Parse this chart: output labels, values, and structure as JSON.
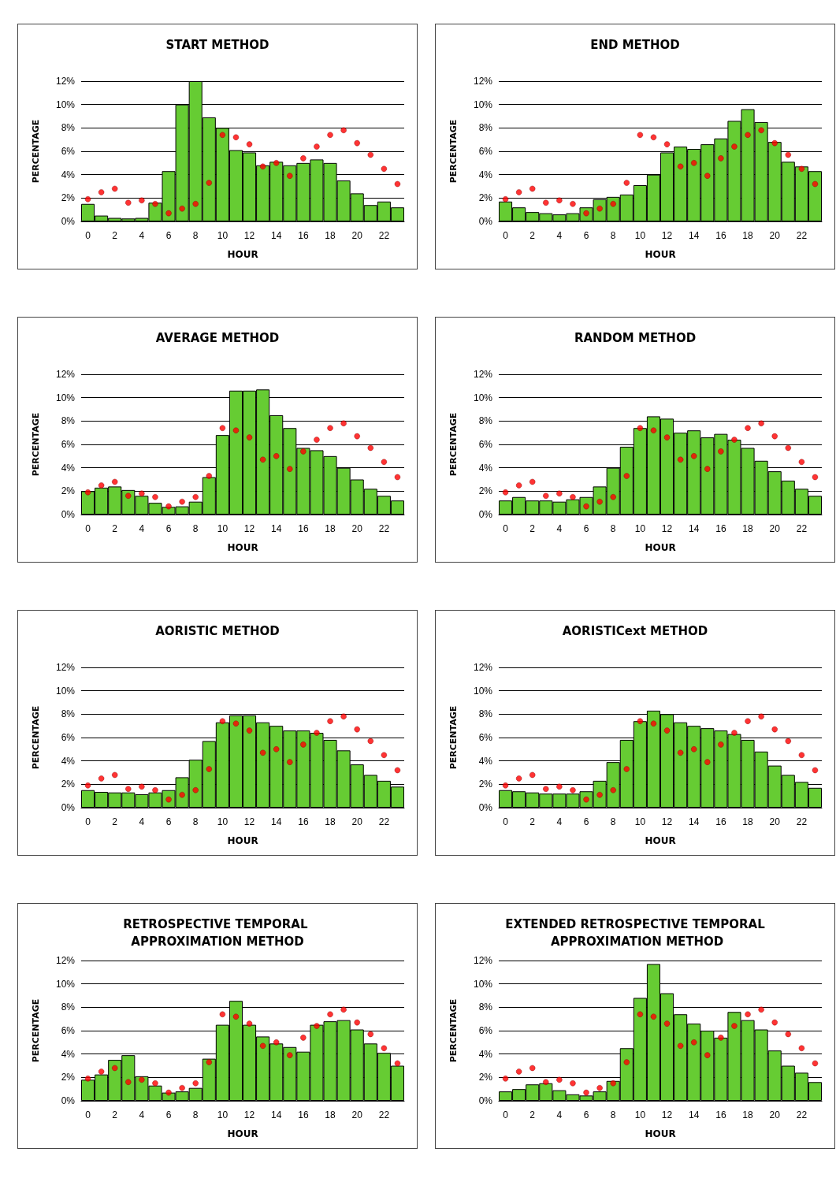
{
  "chart_data": [
    {
      "type": "bar",
      "title": "START METHOD",
      "xlabel": "HOUR",
      "ylabel": "PERCENTAGE",
      "x": [
        0,
        1,
        2,
        3,
        4,
        5,
        6,
        7,
        8,
        9,
        10,
        11,
        12,
        13,
        14,
        15,
        16,
        17,
        18,
        19,
        20,
        21,
        22,
        23
      ],
      "xlim": [
        -0.5,
        23.5
      ],
      "xticks": [
        0,
        2,
        4,
        6,
        8,
        10,
        12,
        14,
        16,
        18,
        20,
        22
      ],
      "ylim": [
        0,
        12
      ],
      "yticks": [
        {
          "value": 0,
          "label": "0%"
        },
        {
          "value": 2,
          "label": "2%"
        },
        {
          "value": 4,
          "label": "4%"
        },
        {
          "value": 6,
          "label": "6%"
        },
        {
          "value": 8,
          "label": "8%"
        },
        {
          "value": 10,
          "label": "10%"
        },
        {
          "value": 12,
          "label": "12%"
        }
      ],
      "grid": "y",
      "marker": "circle",
      "series": [
        {
          "color": "#66cc33",
          "values": [
            1.5,
            0.5,
            0.3,
            0.25,
            0.3,
            1.6,
            4.3,
            10.0,
            12.0,
            8.9,
            8.0,
            6.1,
            5.9,
            4.8,
            5.1,
            4.8,
            5.0,
            5.3,
            5.0,
            3.5,
            2.4,
            1.4,
            1.7,
            1.2
          ]
        },
        {
          "type": "scatter",
          "color": "#ff0000",
          "values": [
            1.9,
            2.5,
            2.8,
            1.6,
            1.8,
            1.5,
            0.7,
            1.1,
            1.5,
            3.3,
            7.4,
            7.2,
            6.6,
            4.7,
            5.0,
            3.9,
            5.4,
            6.4,
            7.4,
            7.8,
            6.7,
            5.7,
            4.5,
            3.2
          ]
        }
      ]
    },
    {
      "type": "bar",
      "title": "END METHOD",
      "xlabel": "HOUR",
      "ylabel": "PERCENTAGE",
      "x": [
        0,
        1,
        2,
        3,
        4,
        5,
        6,
        7,
        8,
        9,
        10,
        11,
        12,
        13,
        14,
        15,
        16,
        17,
        18,
        19,
        20,
        21,
        22,
        23
      ],
      "xlim": [
        -0.5,
        23.5
      ],
      "xticks": [
        0,
        2,
        4,
        6,
        8,
        10,
        12,
        14,
        16,
        18,
        20,
        22
      ],
      "ylim": [
        0,
        12
      ],
      "yticks": [
        {
          "value": 0,
          "label": "0%"
        },
        {
          "value": 2,
          "label": "2%"
        },
        {
          "value": 4,
          "label": "4%"
        },
        {
          "value": 6,
          "label": "6%"
        },
        {
          "value": 8,
          "label": "8%"
        },
        {
          "value": 10,
          "label": "10%"
        },
        {
          "value": 12,
          "label": "12%"
        }
      ],
      "grid": "y",
      "marker": "circle",
      "series": [
        {
          "color": "#66cc33",
          "values": [
            1.7,
            1.2,
            0.8,
            0.7,
            0.6,
            0.7,
            1.2,
            1.9,
            2.1,
            2.3,
            3.1,
            4.0,
            5.9,
            6.4,
            6.2,
            6.6,
            7.1,
            8.6,
            9.6,
            8.5,
            6.8,
            5.1,
            4.7,
            4.3
          ]
        },
        {
          "type": "scatter",
          "color": "#ff0000",
          "values": [
            1.9,
            2.5,
            2.8,
            1.6,
            1.8,
            1.5,
            0.7,
            1.1,
            1.5,
            3.3,
            7.4,
            7.2,
            6.6,
            4.7,
            5.0,
            3.9,
            5.4,
            6.4,
            7.4,
            7.8,
            6.7,
            5.7,
            4.5,
            3.2
          ]
        }
      ]
    },
    {
      "type": "bar",
      "title": "AVERAGE METHOD",
      "xlabel": "HOUR",
      "ylabel": "PERCENTAGE",
      "x": [
        0,
        1,
        2,
        3,
        4,
        5,
        6,
        7,
        8,
        9,
        10,
        11,
        12,
        13,
        14,
        15,
        16,
        17,
        18,
        19,
        20,
        21,
        22,
        23
      ],
      "xlim": [
        -0.5,
        23.5
      ],
      "xticks": [
        0,
        2,
        4,
        6,
        8,
        10,
        12,
        14,
        16,
        18,
        20,
        22
      ],
      "ylim": [
        0,
        12
      ],
      "yticks": [
        {
          "value": 0,
          "label": "0%"
        },
        {
          "value": 2,
          "label": "2%"
        },
        {
          "value": 4,
          "label": "4%"
        },
        {
          "value": 6,
          "label": "6%"
        },
        {
          "value": 8,
          "label": "8%"
        },
        {
          "value": 10,
          "label": "10%"
        },
        {
          "value": 12,
          "label": "12%"
        }
      ],
      "grid": "y",
      "marker": "circle",
      "series": [
        {
          "color": "#66cc33",
          "values": [
            2.0,
            2.3,
            2.4,
            2.1,
            1.6,
            1.0,
            0.65,
            0.7,
            1.1,
            3.2,
            6.8,
            10.6,
            10.6,
            10.7,
            8.5,
            7.4,
            5.7,
            5.5,
            5.0,
            4.0,
            3.0,
            2.2,
            1.6,
            1.2
          ]
        },
        {
          "type": "scatter",
          "color": "#ff0000",
          "values": [
            1.9,
            2.5,
            2.8,
            1.6,
            1.8,
            1.5,
            0.7,
            1.1,
            1.5,
            3.3,
            7.4,
            7.2,
            6.6,
            4.7,
            5.0,
            3.9,
            5.4,
            6.4,
            7.4,
            7.8,
            6.7,
            5.7,
            4.5,
            3.2
          ]
        }
      ]
    },
    {
      "type": "bar",
      "title": "RANDOM METHOD",
      "xlabel": "HOUR",
      "ylabel": "PERCENTAGE",
      "x": [
        0,
        1,
        2,
        3,
        4,
        5,
        6,
        7,
        8,
        9,
        10,
        11,
        12,
        13,
        14,
        15,
        16,
        17,
        18,
        19,
        20,
        21,
        22,
        23
      ],
      "xlim": [
        -0.5,
        23.5
      ],
      "xticks": [
        0,
        2,
        4,
        6,
        8,
        10,
        12,
        14,
        16,
        18,
        20,
        22
      ],
      "ylim": [
        0,
        12
      ],
      "yticks": [
        {
          "value": 0,
          "label": "0%"
        },
        {
          "value": 2,
          "label": "2%"
        },
        {
          "value": 4,
          "label": "4%"
        },
        {
          "value": 6,
          "label": "6%"
        },
        {
          "value": 8,
          "label": "8%"
        },
        {
          "value": 10,
          "label": "10%"
        },
        {
          "value": 12,
          "label": "12%"
        }
      ],
      "grid": "y",
      "marker": "circle",
      "series": [
        {
          "color": "#66cc33",
          "values": [
            1.2,
            1.5,
            1.2,
            1.2,
            1.1,
            1.3,
            1.5,
            2.4,
            4.0,
            5.8,
            7.4,
            8.4,
            8.2,
            7.0,
            7.2,
            6.6,
            6.9,
            6.4,
            5.7,
            4.6,
            3.7,
            2.9,
            2.2,
            1.6
          ]
        },
        {
          "type": "scatter",
          "color": "#ff0000",
          "values": [
            1.9,
            2.5,
            2.8,
            1.6,
            1.8,
            1.5,
            0.7,
            1.1,
            1.5,
            3.3,
            7.4,
            7.2,
            6.6,
            4.7,
            5.0,
            3.9,
            5.4,
            6.4,
            7.4,
            7.8,
            6.7,
            5.7,
            4.5,
            3.2
          ]
        }
      ]
    },
    {
      "type": "bar",
      "title": "AORISTIC METHOD",
      "xlabel": "HOUR",
      "ylabel": "PERCENTAGE",
      "x": [
        0,
        1,
        2,
        3,
        4,
        5,
        6,
        7,
        8,
        9,
        10,
        11,
        12,
        13,
        14,
        15,
        16,
        17,
        18,
        19,
        20,
        21,
        22,
        23
      ],
      "xlim": [
        -0.5,
        23.5
      ],
      "xticks": [
        0,
        2,
        4,
        6,
        8,
        10,
        12,
        14,
        16,
        18,
        20,
        22
      ],
      "ylim": [
        0,
        12
      ],
      "yticks": [
        {
          "value": 0,
          "label": "0%"
        },
        {
          "value": 2,
          "label": "2%"
        },
        {
          "value": 4,
          "label": "4%"
        },
        {
          "value": 6,
          "label": "6%"
        },
        {
          "value": 8,
          "label": "8%"
        },
        {
          "value": 10,
          "label": "10%"
        },
        {
          "value": 12,
          "label": "12%"
        }
      ],
      "grid": "y",
      "marker": "circle",
      "series": [
        {
          "color": "#66cc33",
          "values": [
            1.5,
            1.35,
            1.3,
            1.3,
            1.15,
            1.3,
            1.5,
            2.6,
            4.1,
            5.7,
            7.3,
            7.9,
            7.9,
            7.3,
            7.0,
            6.6,
            6.6,
            6.4,
            5.8,
            4.9,
            3.7,
            2.8,
            2.3,
            1.8
          ]
        },
        {
          "type": "scatter",
          "color": "#ff0000",
          "values": [
            1.9,
            2.5,
            2.8,
            1.6,
            1.8,
            1.5,
            0.7,
            1.1,
            1.5,
            3.3,
            7.4,
            7.2,
            6.6,
            4.7,
            5.0,
            3.9,
            5.4,
            6.4,
            7.4,
            7.8,
            6.7,
            5.7,
            4.5,
            3.2
          ]
        }
      ]
    },
    {
      "type": "bar",
      "title": "AORISTICext METHOD",
      "xlabel": "HOUR",
      "ylabel": "PERCENTAGE",
      "x": [
        0,
        1,
        2,
        3,
        4,
        5,
        6,
        7,
        8,
        9,
        10,
        11,
        12,
        13,
        14,
        15,
        16,
        17,
        18,
        19,
        20,
        21,
        22,
        23
      ],
      "xlim": [
        -0.5,
        23.5
      ],
      "xticks": [
        0,
        2,
        4,
        6,
        8,
        10,
        12,
        14,
        16,
        18,
        20,
        22
      ],
      "ylim": [
        0,
        12
      ],
      "yticks": [
        {
          "value": 0,
          "label": "0%"
        },
        {
          "value": 2,
          "label": "2%"
        },
        {
          "value": 4,
          "label": "4%"
        },
        {
          "value": 6,
          "label": "6%"
        },
        {
          "value": 8,
          "label": "8%"
        },
        {
          "value": 10,
          "label": "10%"
        },
        {
          "value": 12,
          "label": "12%"
        }
      ],
      "grid": "y",
      "marker": "circle",
      "series": [
        {
          "color": "#66cc33",
          "values": [
            1.5,
            1.4,
            1.3,
            1.2,
            1.2,
            1.2,
            1.4,
            2.3,
            3.9,
            5.8,
            7.4,
            8.3,
            8.0,
            7.3,
            7.0,
            6.8,
            6.6,
            6.3,
            5.8,
            4.8,
            3.6,
            2.8,
            2.2,
            1.7
          ]
        },
        {
          "type": "scatter",
          "color": "#ff0000",
          "values": [
            1.9,
            2.5,
            2.8,
            1.6,
            1.8,
            1.5,
            0.7,
            1.1,
            1.5,
            3.3,
            7.4,
            7.2,
            6.6,
            4.7,
            5.0,
            3.9,
            5.4,
            6.4,
            7.4,
            7.8,
            6.7,
            5.7,
            4.5,
            3.2
          ]
        }
      ]
    },
    {
      "type": "bar",
      "title": "RETROSPECTIVE TEMPORAL APPROXIMATION METHOD",
      "xlabel": "HOUR",
      "ylabel": "PERCENTAGE",
      "x": [
        0,
        1,
        2,
        3,
        4,
        5,
        6,
        7,
        8,
        9,
        10,
        11,
        12,
        13,
        14,
        15,
        16,
        17,
        18,
        19,
        20,
        21,
        22,
        23
      ],
      "xlim": [
        -0.5,
        23.5
      ],
      "xticks": [
        0,
        2,
        4,
        6,
        8,
        10,
        12,
        14,
        16,
        18,
        20,
        22
      ],
      "ylim": [
        0,
        12
      ],
      "yticks": [
        {
          "value": 0,
          "label": "0%"
        },
        {
          "value": 2,
          "label": "2%"
        },
        {
          "value": 4,
          "label": "4%"
        },
        {
          "value": 6,
          "label": "6%"
        },
        {
          "value": 8,
          "label": "8%"
        },
        {
          "value": 10,
          "label": "10%"
        },
        {
          "value": 12,
          "label": "12%"
        }
      ],
      "grid": "y",
      "marker": "circle",
      "series": [
        {
          "color": "#66cc33",
          "values": [
            1.8,
            2.25,
            3.5,
            3.9,
            2.1,
            1.3,
            0.7,
            0.8,
            1.1,
            3.6,
            6.5,
            8.55,
            6.5,
            5.5,
            4.9,
            4.6,
            4.2,
            6.5,
            6.8,
            6.9,
            6.1,
            4.9,
            4.1,
            3.0
          ]
        },
        {
          "type": "scatter",
          "color": "#ff0000",
          "values": [
            1.9,
            2.5,
            2.8,
            1.6,
            1.8,
            1.5,
            0.7,
            1.1,
            1.5,
            3.3,
            7.4,
            7.2,
            6.6,
            4.7,
            5.0,
            3.9,
            5.4,
            6.4,
            7.4,
            7.8,
            6.7,
            5.7,
            4.5,
            3.2
          ]
        }
      ]
    },
    {
      "type": "bar",
      "title": "EXTENDED RETROSPECTIVE TEMPORAL APPROXIMATION METHOD",
      "xlabel": "HOUR",
      "ylabel": "PERCENTAGE",
      "x": [
        0,
        1,
        2,
        3,
        4,
        5,
        6,
        7,
        8,
        9,
        10,
        11,
        12,
        13,
        14,
        15,
        16,
        17,
        18,
        19,
        20,
        21,
        22,
        23
      ],
      "xlim": [
        -0.5,
        23.5
      ],
      "xticks": [
        0,
        2,
        4,
        6,
        8,
        10,
        12,
        14,
        16,
        18,
        20,
        22
      ],
      "ylim": [
        0,
        12
      ],
      "yticks": [
        {
          "value": 0,
          "label": "0%"
        },
        {
          "value": 2,
          "label": "2%"
        },
        {
          "value": 4,
          "label": "4%"
        },
        {
          "value": 6,
          "label": "6%"
        },
        {
          "value": 8,
          "label": "8%"
        },
        {
          "value": 10,
          "label": "10%"
        },
        {
          "value": 12,
          "label": "12%"
        }
      ],
      "grid": "y",
      "marker": "circle",
      "series": [
        {
          "color": "#66cc33",
          "values": [
            0.8,
            1.0,
            1.4,
            1.5,
            0.9,
            0.55,
            0.45,
            0.8,
            1.7,
            4.5,
            8.8,
            11.7,
            9.2,
            7.4,
            6.6,
            6.0,
            5.4,
            7.6,
            6.9,
            6.1,
            4.3,
            3.0,
            2.4,
            1.6
          ]
        },
        {
          "type": "scatter",
          "color": "#ff0000",
          "values": [
            1.9,
            2.5,
            2.8,
            1.6,
            1.8,
            1.5,
            0.7,
            1.1,
            1.5,
            3.3,
            7.4,
            7.2,
            6.6,
            4.7,
            5.0,
            3.9,
            5.4,
            6.4,
            7.4,
            7.8,
            6.7,
            5.7,
            4.5,
            3.2
          ]
        }
      ]
    }
  ]
}
